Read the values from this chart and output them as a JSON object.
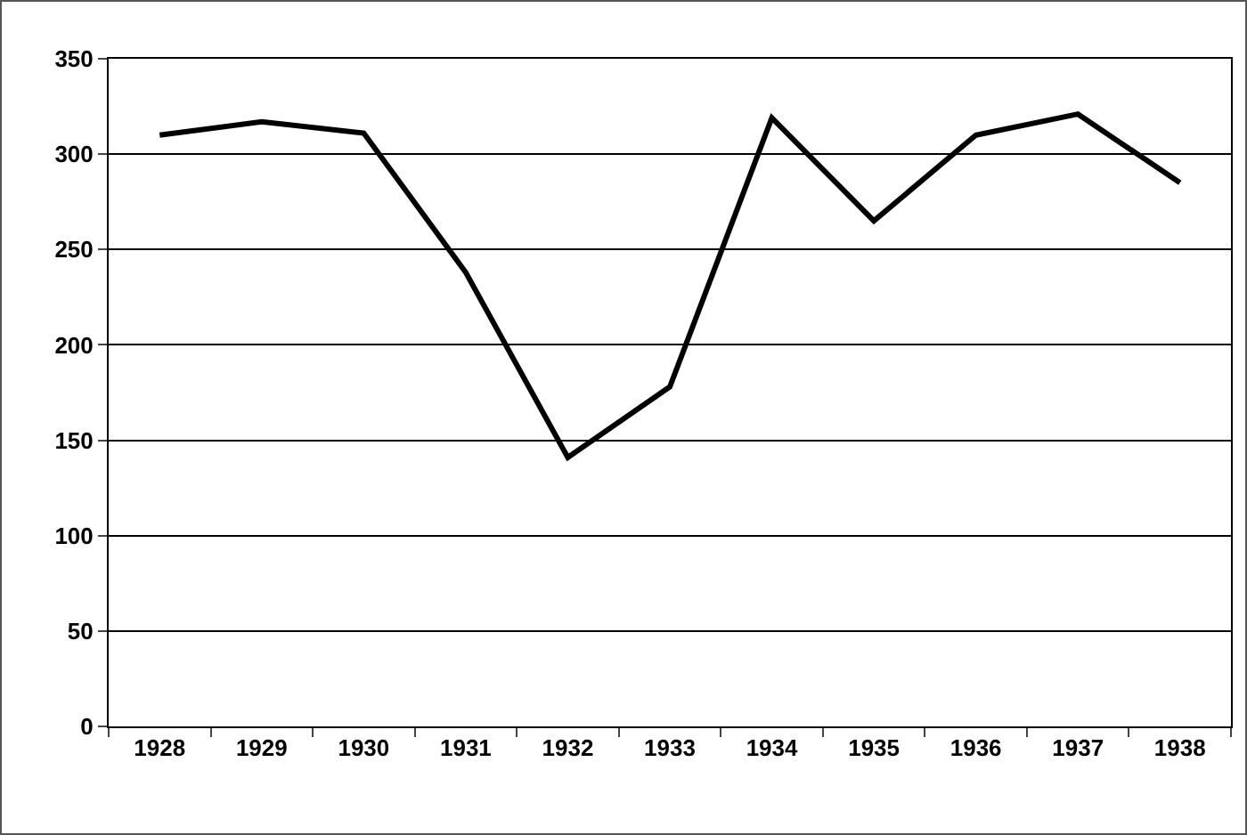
{
  "chart_data": {
    "type": "line",
    "categories": [
      "1928",
      "1929",
      "1930",
      "1931",
      "1932",
      "1933",
      "1934",
      "1935",
      "1936",
      "1937",
      "1938"
    ],
    "series": [
      {
        "color": "#000000",
        "values": [
          310,
          317,
          311,
          238,
          141,
          178,
          319,
          265,
          310,
          321,
          285
        ]
      }
    ],
    "ylim": [
      0,
      350
    ],
    "yticks": [
      0,
      50,
      100,
      150,
      200,
      250,
      300,
      350
    ],
    "grid": "y",
    "marker": "none",
    "line_style": "solid"
  }
}
